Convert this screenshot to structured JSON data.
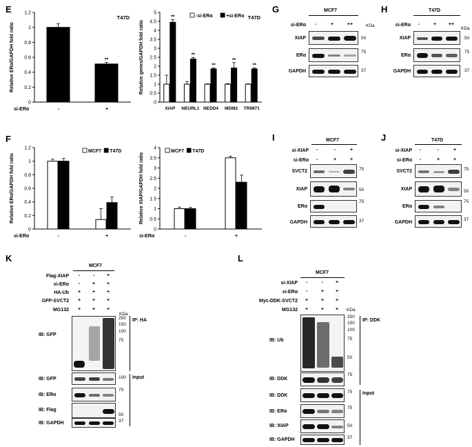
{
  "panels": {
    "E": "E",
    "F": "F",
    "G": "G",
    "H": "H",
    "I": "I",
    "J": "J",
    "K": "K",
    "L": "L"
  },
  "charts": {
    "E1": {
      "type": "bar",
      "tag": "T47D",
      "ylabel": "Relative ERα/GAPDH fold ratio",
      "ylim": [
        0,
        1.2
      ],
      "yticks": [
        "0",
        "0.2",
        "0.4",
        "0.6",
        "0.8",
        "1",
        "1.2"
      ],
      "xrow_label": "si-ERα",
      "categories": [
        "-",
        "+"
      ],
      "values": [
        1.0,
        0.51
      ],
      "errors": [
        0.05,
        0.02
      ],
      "colors": [
        "#000000",
        "#000000"
      ],
      "sig": [
        "",
        "**"
      ]
    },
    "E2": {
      "type": "bar",
      "tag": "T47D",
      "ylabel": "Relative genes/GAPDH fold ratio",
      "ylim": [
        0,
        5
      ],
      "yticks": [
        "0",
        "0.5",
        "1",
        "1.5",
        "2",
        "2.5",
        "3",
        "3.5",
        "4",
        "4.5",
        "5"
      ],
      "categories": [
        "XIAP",
        "NEURL1",
        "NEDD4",
        "MDM2",
        "TRIM71"
      ],
      "legend": [
        "-si-ERα",
        "+si-ERα"
      ],
      "series": [
        {
          "name": "-si-ERα",
          "color": "#ffffff",
          "values": [
            1.0,
            1.0,
            1.0,
            1.0,
            1.0
          ],
          "errors": [
            0.5,
            0.15,
            0.02,
            0.03,
            0.02
          ]
        },
        {
          "name": "+si-ERα",
          "color": "#000000",
          "values": [
            4.45,
            2.4,
            1.85,
            1.9,
            1.85
          ],
          "errors": [
            0.15,
            0.08,
            0.05,
            0.3,
            0.05
          ]
        }
      ],
      "sig": [
        "**",
        "**",
        "**",
        "**",
        "**"
      ]
    },
    "F1": {
      "type": "bar",
      "ylabel": "Relative ERα/GAPDH fold ratio",
      "ylim": [
        0,
        1.2
      ],
      "yticks": [
        "0",
        "0.2",
        "0.4",
        "0.6",
        "0.8",
        "1",
        "1.2"
      ],
      "xrow_label": "si-ERα",
      "categories": [
        "-",
        "+"
      ],
      "legend": [
        "MCF7",
        "T47D"
      ],
      "series": [
        {
          "name": "MCF7",
          "color": "#ffffff",
          "values": [
            1.0,
            0.14
          ],
          "errors": [
            0.03,
            0.16
          ]
        },
        {
          "name": "T47D",
          "color": "#000000",
          "values": [
            1.0,
            0.39
          ],
          "errors": [
            0.04,
            0.08
          ]
        }
      ]
    },
    "F2": {
      "type": "bar",
      "ylabel": "Relative XIAP/GAPDH fold ratio",
      "ylim": [
        0,
        4
      ],
      "yticks": [
        "0",
        "0.5",
        "1",
        "1.5",
        "2",
        "2.5",
        "3",
        "3.5",
        "4"
      ],
      "xrow_label": "si-ERα",
      "categories": [
        "-",
        "+"
      ],
      "legend": [
        "MCF7",
        "T47D"
      ],
      "series": [
        {
          "name": "MCF7",
          "color": "#ffffff",
          "values": [
            1.0,
            3.5
          ],
          "errors": [
            0.08,
            0.08
          ]
        },
        {
          "name": "T47D",
          "color": "#000000",
          "values": [
            1.0,
            2.3
          ],
          "errors": [
            0.06,
            0.35
          ]
        }
      ]
    }
  },
  "chart_data": [
    {
      "type": "bar",
      "title": "T47D",
      "ylabel": "Relative ERα/GAPDH fold ratio",
      "categories": [
        "-",
        "+"
      ],
      "values": [
        1.0,
        0.51
      ],
      "ylim": [
        0,
        1.2
      ]
    },
    {
      "type": "bar",
      "title": "T47D",
      "ylabel": "Relative genes/GAPDH fold ratio",
      "categories": [
        "XIAP",
        "NEURL1",
        "NEDD4",
        "MDM2",
        "TRIM71"
      ],
      "series": [
        {
          "name": "-si-ERα",
          "values": [
            1.0,
            1.0,
            1.0,
            1.0,
            1.0
          ]
        },
        {
          "name": "+si-ERα",
          "values": [
            4.45,
            2.4,
            1.85,
            1.9,
            1.85
          ]
        }
      ],
      "ylim": [
        0,
        5
      ]
    },
    {
      "type": "bar",
      "ylabel": "Relative ERα/GAPDH fold ratio",
      "categories": [
        "-",
        "+"
      ],
      "series": [
        {
          "name": "MCF7",
          "values": [
            1.0,
            0.14
          ]
        },
        {
          "name": "T47D",
          "values": [
            1.0,
            0.39
          ]
        }
      ],
      "ylim": [
        0,
        1.2
      ]
    },
    {
      "type": "bar",
      "ylabel": "Relative XIAP/GAPDH fold ratio",
      "categories": [
        "-",
        "+"
      ],
      "series": [
        {
          "name": "MCF7",
          "values": [
            1.0,
            3.5
          ]
        },
        {
          "name": "T47D",
          "values": [
            1.0,
            2.3
          ]
        }
      ],
      "ylim": [
        0,
        4
      ]
    }
  ],
  "blots": {
    "G": {
      "cell": "MCF7",
      "row_label": "si-ERα",
      "symbols": [
        "-",
        "+",
        "++"
      ],
      "proteins": [
        "XIAP",
        "ERα",
        "GAPDH"
      ],
      "markers": [
        "50",
        "75",
        "37"
      ],
      "kda": "KDa"
    },
    "H": {
      "cell": "T47D",
      "row_label": "si-ERα",
      "symbols": [
        "-",
        "+",
        "++"
      ],
      "proteins": [
        "XIAP",
        "ERα",
        "GAPDH"
      ],
      "markers": [
        "50",
        "75",
        "37"
      ],
      "kda": "KDa"
    },
    "I": {
      "cell": "MCF7",
      "rows": [
        {
          "label": "si-XIAP",
          "symbols": [
            "-",
            "-",
            "+"
          ]
        },
        {
          "label": "si-ERα",
          "symbols": [
            "-",
            "+",
            "+"
          ]
        }
      ],
      "proteins": [
        "SVCT2",
        "XIAP",
        "ERα",
        "GAPDH"
      ],
      "markers": [
        "75",
        "50",
        "75",
        "37"
      ]
    },
    "J": {
      "cell": "T47D",
      "rows": [
        {
          "label": "si-XIAP",
          "symbols": [
            "-",
            "-",
            "+"
          ]
        },
        {
          "label": "si-ERα",
          "symbols": [
            "-",
            "+",
            "+"
          ]
        }
      ],
      "proteins": [
        "SVCT2",
        "XIAP",
        "ERα",
        "GAPDH"
      ],
      "markers": [
        "75",
        "50",
        "75",
        "37"
      ]
    },
    "K": {
      "cell": "MCF7",
      "rows": [
        {
          "label": "Flag-XIAP",
          "symbols": [
            "-",
            "-",
            "+"
          ]
        },
        {
          "label": "si-ERα",
          "symbols": [
            "-",
            "+",
            "+"
          ]
        },
        {
          "label": "HA-Ub",
          "symbols": [
            "+",
            "+",
            "+"
          ]
        },
        {
          "label": "GFP-SVCT2",
          "symbols": [
            "+",
            "+",
            "+"
          ]
        },
        {
          "label": "MG132",
          "symbols": [
            "+",
            "+",
            "+"
          ]
        }
      ],
      "ip_label": "IP: HA",
      "input_label": "Input",
      "kda": "KDa",
      "ip_markers": [
        "250",
        "150",
        "100",
        "75"
      ],
      "probes": [
        "IB: GFP",
        "IB: GFP",
        "IB: ERα",
        "IB: Flag",
        "IB: GAPDH"
      ],
      "probe_markers": [
        "100",
        "75",
        "50",
        "37"
      ]
    },
    "L": {
      "cell": "MCF7",
      "rows": [
        {
          "label": "si-XIAP",
          "symbols": [
            "-",
            "-",
            "+"
          ]
        },
        {
          "label": "si-ERα",
          "symbols": [
            "-",
            "+",
            "+"
          ]
        },
        {
          "label": "Myc-DDK-SVCT2",
          "symbols": [
            "+",
            "+",
            "+"
          ]
        },
        {
          "label": "MG132",
          "symbols": [
            "+",
            "+",
            "+"
          ]
        }
      ],
      "ip_label": "IP: DDK",
      "input_label": "Input",
      "kda": "KDa",
      "ip_markers": [
        "250",
        "150",
        "100",
        "75",
        "50"
      ],
      "probes": [
        "IB: Ub",
        "IB: DDK",
        "IB: DDK",
        "IB: ERα",
        "IB: XIAP",
        "IB: GAPDH"
      ],
      "probe_markers": [
        "75",
        "75",
        "75",
        "50",
        "37"
      ]
    }
  }
}
